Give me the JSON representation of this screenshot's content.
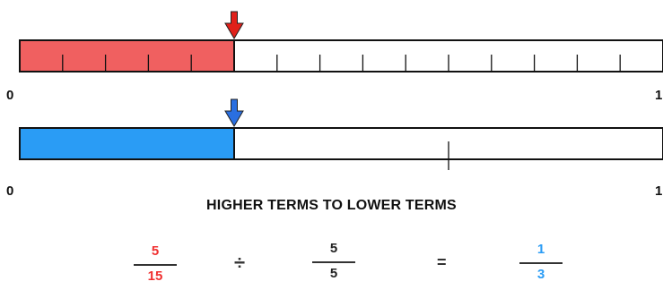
{
  "colors": {
    "red": "#f06060",
    "red_arrow": "#e0201a",
    "blue": "#2a9cf5",
    "blue_arrow": "#2a6fe0",
    "stroke": "#111111"
  },
  "bar_top": {
    "divisions": 15,
    "shaded": 5,
    "start_label": "0",
    "end_label": "1"
  },
  "bar_bottom": {
    "divisions": 3,
    "shaded": 1,
    "start_label": "0",
    "end_label": "1"
  },
  "title": "HIGHER TERMS TO LOWER TERMS",
  "equation": {
    "left": {
      "numerator": "5",
      "denominator": "15"
    },
    "operator": "÷",
    "divisor": {
      "numerator": "5",
      "denominator": "5"
    },
    "equals": "=",
    "result": {
      "numerator": "1",
      "denominator": "3"
    }
  }
}
